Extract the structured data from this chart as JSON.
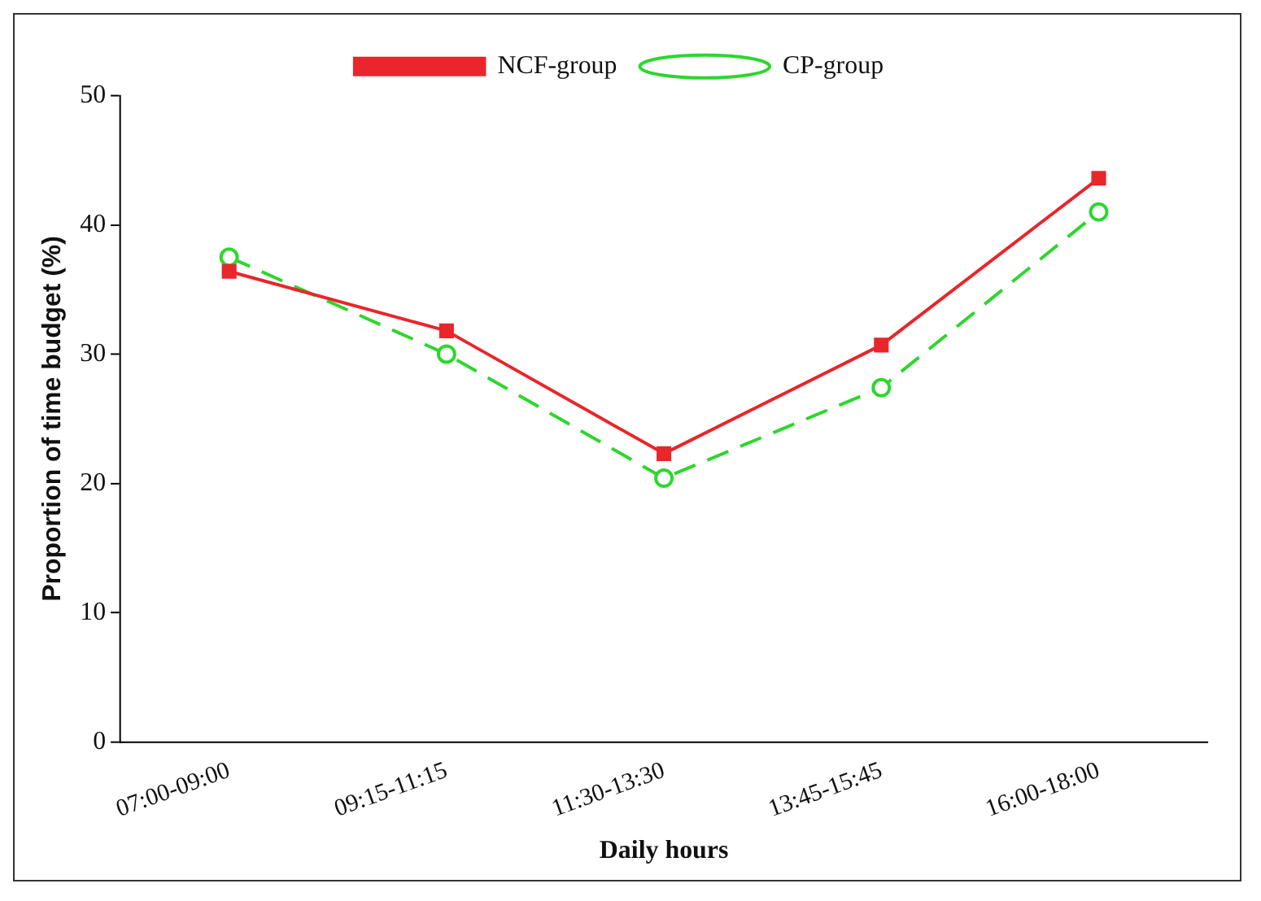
{
  "chart_data": {
    "type": "line",
    "xlabel": "Daily hours",
    "ylabel": "Proportion of time budget (%)",
    "categories": [
      "07:00-09:00",
      "09:15-11:15",
      "11:30-13:30",
      "13:45-15:45",
      "16:00-18:00"
    ],
    "series": [
      {
        "name": "NCF-group",
        "color": "#e8262b",
        "values": [
          36.4,
          31.8,
          22.3,
          30.7,
          43.6
        ],
        "marker": "square",
        "line_style": "solid"
      },
      {
        "name": "CP-group",
        "color": "#2ed62e",
        "values": [
          37.5,
          30.0,
          20.4,
          27.4,
          41.0
        ],
        "marker": "circle",
        "line_style": "dashed"
      }
    ],
    "ylim": [
      0,
      50
    ],
    "yticks": [
      0,
      10,
      20,
      30,
      40,
      50
    ],
    "grid": false,
    "legend": "top"
  }
}
